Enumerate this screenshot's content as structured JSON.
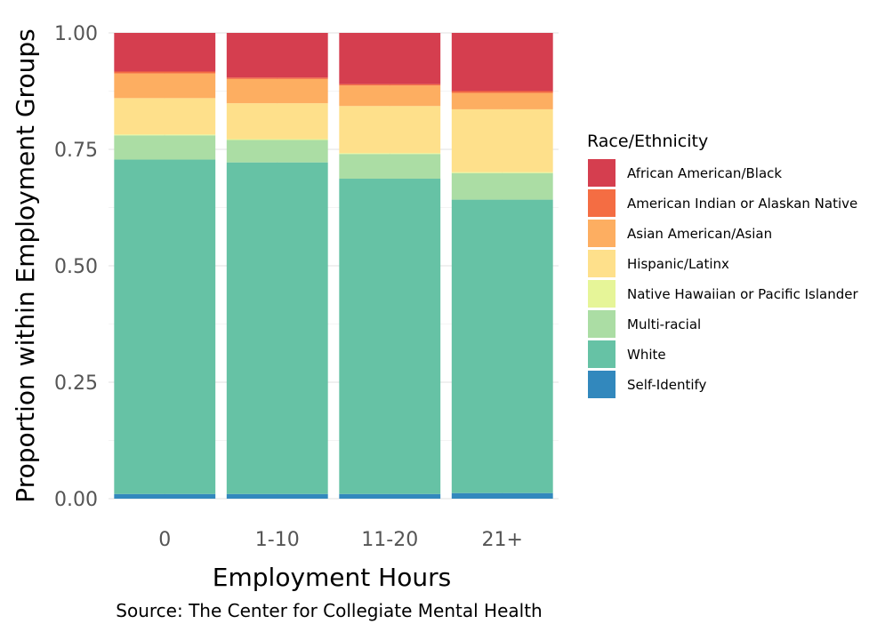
{
  "chart_data": {
    "type": "bar",
    "stacked": true,
    "xlabel": "Employment Hours",
    "ylabel": "Proportion within Employment Groups",
    "caption": "Source: The Center for Collegiate Mental Health",
    "categories": [
      "0",
      "1-10",
      "11-20",
      "21+"
    ],
    "ylim": [
      0,
      1
    ],
    "yticks": [
      "0.00",
      "0.25",
      "0.50",
      "0.75",
      "1.00"
    ],
    "grid": true,
    "legend": {
      "title": "Race/Ethnicity",
      "placement": "right"
    },
    "series": [
      {
        "name": "Self-Identify",
        "color": "#3288bd",
        "values": [
          0.01,
          0.01,
          0.01,
          0.012
        ]
      },
      {
        "name": "White",
        "color": "#66c2a5",
        "values": [
          0.718,
          0.712,
          0.677,
          0.63
        ]
      },
      {
        "name": "Multi-racial",
        "color": "#abdda4",
        "values": [
          0.052,
          0.048,
          0.053,
          0.057
        ]
      },
      {
        "name": "Native Hawaiian or Pacific Islander",
        "color": "#e6f598",
        "values": [
          0.002,
          0.002,
          0.002,
          0.002
        ]
      },
      {
        "name": "Hispanic/Latinx",
        "color": "#fee08b",
        "values": [
          0.078,
          0.077,
          0.101,
          0.135
        ]
      },
      {
        "name": "Asian American/Asian",
        "color": "#fdae61",
        "values": [
          0.053,
          0.052,
          0.044,
          0.035
        ]
      },
      {
        "name": "American Indian or Alaskan Native",
        "color": "#f46d43",
        "values": [
          0.004,
          0.003,
          0.003,
          0.004
        ]
      },
      {
        "name": "African American/Black",
        "color": "#d53e4f",
        "values": [
          0.083,
          0.096,
          0.11,
          0.125
        ]
      }
    ],
    "legend_order": [
      "African American/Black",
      "American Indian or Alaskan Native",
      "Asian American/Asian",
      "Hispanic/Latinx",
      "Native Hawaiian or Pacific Islander",
      "Multi-racial",
      "White",
      "Self-Identify"
    ]
  }
}
